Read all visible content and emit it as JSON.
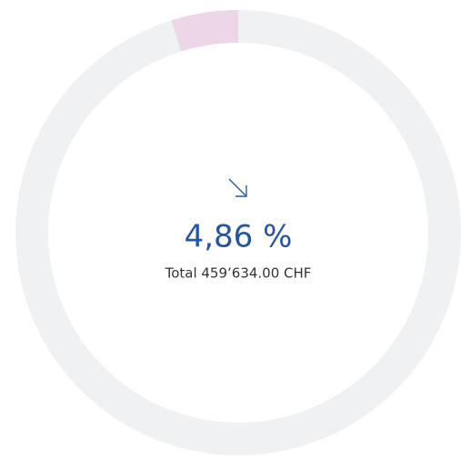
{
  "chart_data": {
    "type": "donut",
    "values": [
      4.86,
      95.14
    ],
    "value_labels": [
      "4,86 %",
      null
    ],
    "colors": [
      "#ecd6e8",
      "#f0f1f3"
    ],
    "subtitle": "Total 459’634.00 CHF"
  }
}
